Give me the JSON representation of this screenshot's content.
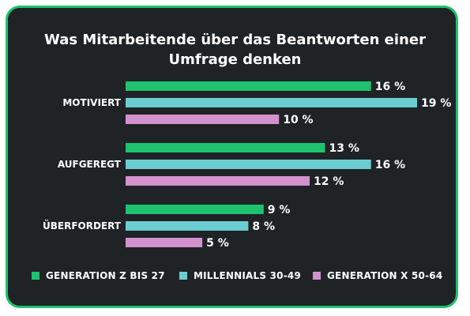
{
  "chart_data": {
    "type": "bar",
    "orientation": "horizontal",
    "title_line1": "Was Mitarbeitende über das Beantworten einer",
    "title_line2": "Umfrage denken",
    "categories": [
      "MOTIVIERT",
      "AUFGEREGT",
      "ÜBERFORDERT"
    ],
    "series": [
      {
        "name": "GENERATION Z BIS 27",
        "color": "#1fc26e",
        "values": [
          16,
          13,
          9
        ]
      },
      {
        "name": "MILLENNIALS 30-49",
        "color": "#6ccdd1",
        "values": [
          19,
          16,
          8
        ]
      },
      {
        "name": "GENERATION X 50-64",
        "color": "#d391ce",
        "values": [
          10,
          12,
          5
        ]
      }
    ],
    "value_suffix": " %",
    "xlim": [
      0,
      19
    ],
    "grid": false,
    "legend_position": "bottom"
  },
  "colors": {
    "card_background": "#1f2326",
    "card_border": "#1fc26e",
    "text": "#ffffff"
  }
}
